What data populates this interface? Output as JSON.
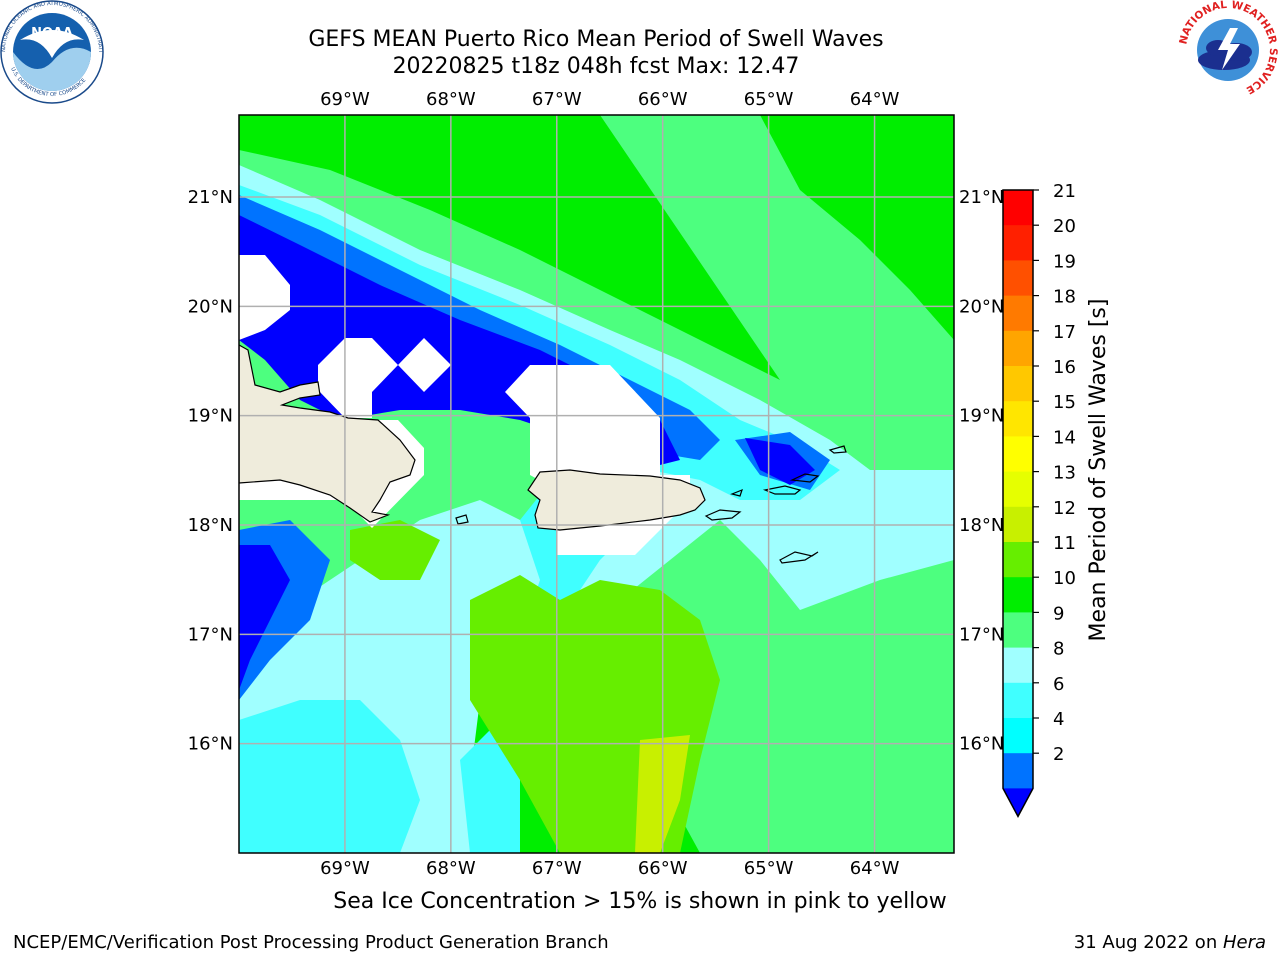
{
  "header": {
    "title_line1": "GEFS MEAN Puerto Rico Mean Period of Swell Waves",
    "title_line2": "20220825 t18z 048h fcst   Max: 12.47"
  },
  "map": {
    "lon_ticks": [
      "69°W",
      "68°W",
      "67°W",
      "66°W",
      "65°W",
      "64°W"
    ],
    "lat_ticks": [
      "21°N",
      "20°N",
      "19°N",
      "18°N",
      "17°N",
      "16°N"
    ],
    "lon_values": [
      -69,
      -68,
      -67,
      -66,
      -65,
      -64
    ],
    "lat_values": [
      21,
      20,
      19,
      18,
      17,
      16
    ],
    "extent": {
      "lon_min": -70.0,
      "lon_max": -63.25,
      "lat_min": 15.0,
      "lat_max": 21.75
    },
    "grid": true,
    "land_color": "#efecdc",
    "field_colors": {
      "deep_blue": "#0000ff",
      "blue_2_4": "#0073ff",
      "cyan_4_6": "#00ffff",
      "cyan_6_8": "#40ffff",
      "pale_8_9": "#a0ffff",
      "green_9_10": "#4dff7f",
      "green_10_11": "#00ee00",
      "green_11_12": "#66ee00",
      "lime_12_13": "#c8f000"
    }
  },
  "colorbar": {
    "label": "Mean Period of Swell Waves [s]",
    "ticks": [
      "21",
      "20",
      "19",
      "18",
      "17",
      "16",
      "15",
      "14",
      "13",
      "12",
      "11",
      "10",
      "9",
      "8",
      "6",
      "4",
      "2"
    ],
    "colors": [
      "#ff0000",
      "#ff2000",
      "#ff5000",
      "#ff7a00",
      "#ffa500",
      "#ffc800",
      "#ffe600",
      "#ffff00",
      "#e6ff00",
      "#c8f000",
      "#66ee00",
      "#00ee00",
      "#4dff7f",
      "#a0ffff",
      "#40ffff",
      "#00ffff",
      "#0073ff"
    ],
    "extend_color": "#0000ff"
  },
  "caption": "Sea Ice Concentration > 15% is shown in pink to yellow",
  "footer": {
    "left": "NCEP/EMC/Verification Post Processing Product Generation Branch",
    "right_date": "31 Aug 2022 on ",
    "right_host": "Hera"
  },
  "logos": {
    "noaa_text": "NOAA",
    "noaa_ring": "NATIONAL OCEANIC AND ATMOSPHERIC ADMINISTRATION",
    "noaa_ring_bottom": "U.S. DEPARTMENT OF COMMERCE",
    "nws_ring": "NATIONAL WEATHER SERVICE"
  }
}
